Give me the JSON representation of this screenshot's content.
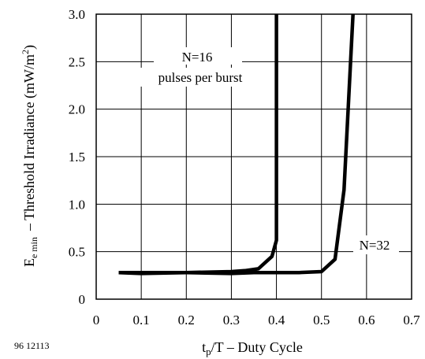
{
  "chart_data": {
    "type": "line",
    "xlim": [
      0,
      0.7
    ],
    "ylim": [
      0,
      3.0
    ],
    "grid": true,
    "x_ticks": [
      "0",
      "0.1",
      "0.2",
      "0.3",
      "0.4",
      "0.5",
      "0.6",
      "0.7"
    ],
    "y_ticks": [
      "0",
      "0.5",
      "1.0",
      "1.5",
      "2.0",
      "2.5",
      "3.0"
    ],
    "xlabel": {
      "t": "t",
      "sub": "p",
      "rest": "/T – Duty Cycle"
    },
    "ylabel": {
      "e": "E",
      "sub": "e min",
      "rest": "– Threshold Irradiance (mW/m",
      "sup": "2",
      "close": ")"
    },
    "figure_id": "96 12113",
    "series": [
      {
        "name": "N=16",
        "subname": "pulses per burst",
        "x": [
          0.05,
          0.1,
          0.2,
          0.3,
          0.33,
          0.36,
          0.39,
          0.4,
          0.4
        ],
        "y": [
          0.28,
          0.27,
          0.28,
          0.29,
          0.3,
          0.32,
          0.45,
          0.62,
          3.0
        ]
      },
      {
        "name": "N=32",
        "x": [
          0.05,
          0.1,
          0.2,
          0.3,
          0.35,
          0.4,
          0.45,
          0.5,
          0.53,
          0.55,
          0.57
        ],
        "y": [
          0.28,
          0.28,
          0.28,
          0.27,
          0.28,
          0.28,
          0.28,
          0.29,
          0.42,
          1.15,
          3.0
        ]
      }
    ]
  }
}
